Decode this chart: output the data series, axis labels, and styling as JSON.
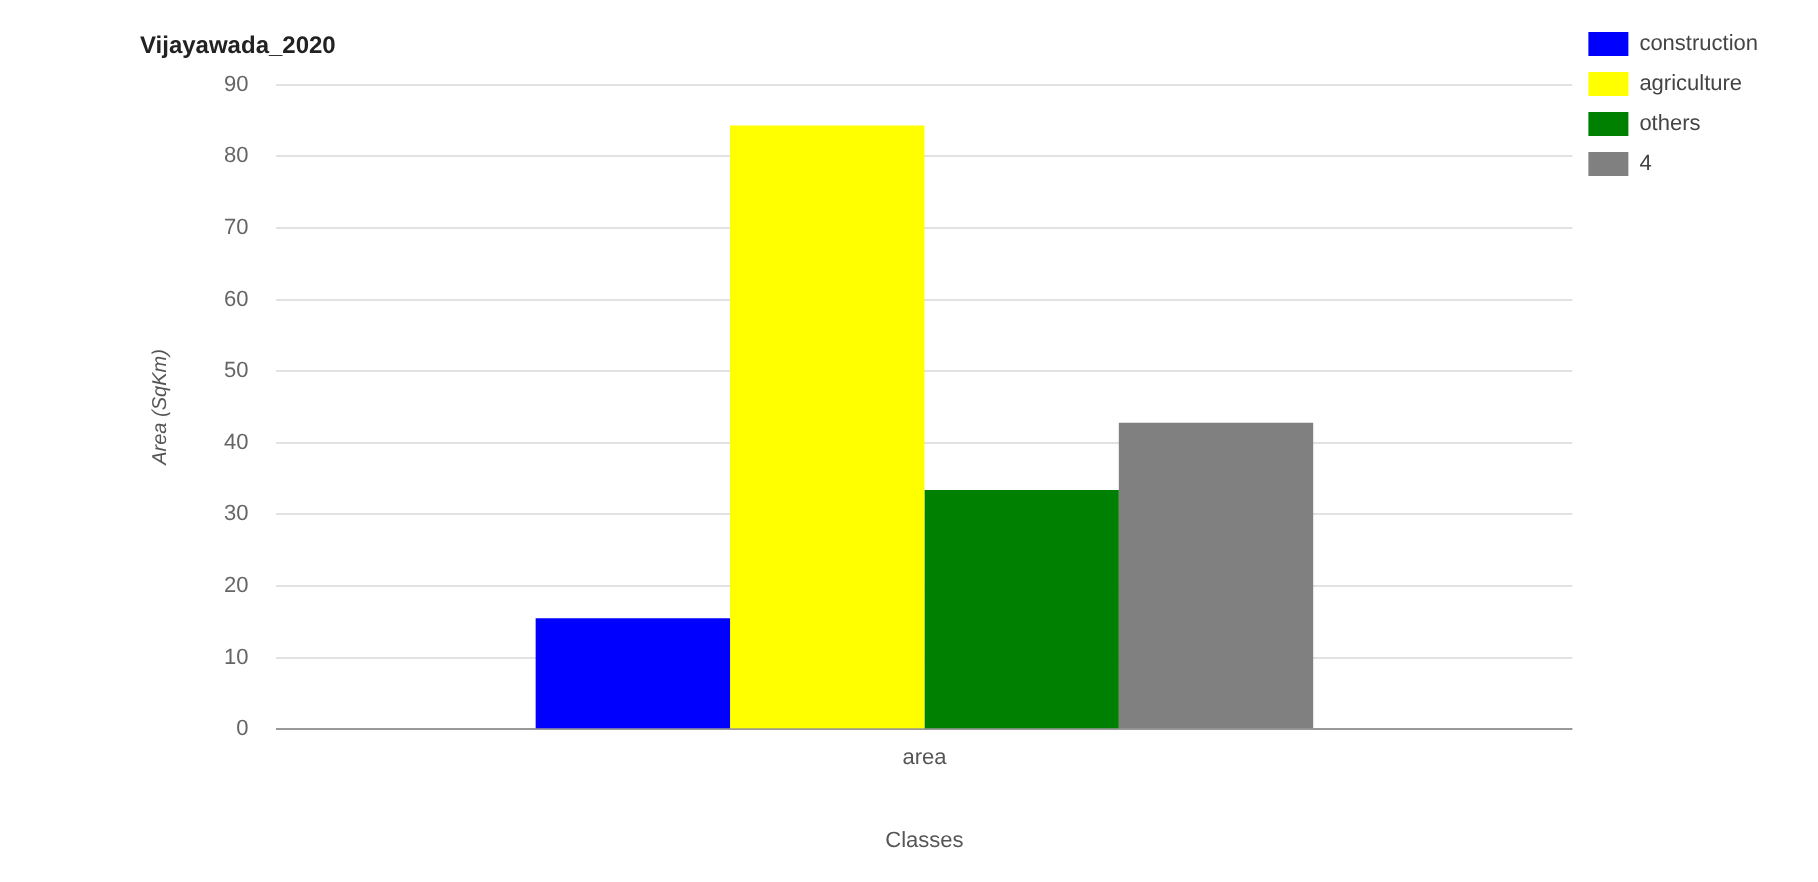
{
  "chart_data": {
    "type": "bar",
    "title": "Vijayawada_2020",
    "xlabel": "Classes",
    "ylabel": "Area (SqKm)",
    "categories": [
      "area"
    ],
    "series": [
      {
        "name": "construction",
        "color": "#0000ff",
        "values": [
          15.5
        ]
      },
      {
        "name": "agriculture",
        "color": "#ffff00",
        "values": [
          84.3
        ]
      },
      {
        "name": "others",
        "color": "#008000",
        "values": [
          33.4
        ]
      },
      {
        "name": "4",
        "color": "#808080",
        "values": [
          42.8
        ]
      }
    ],
    "ylim": [
      0,
      90
    ],
    "yticks": [
      0,
      10,
      20,
      30,
      40,
      50,
      60,
      70,
      80,
      90
    ],
    "grid": "y",
    "legend": "top right"
  }
}
